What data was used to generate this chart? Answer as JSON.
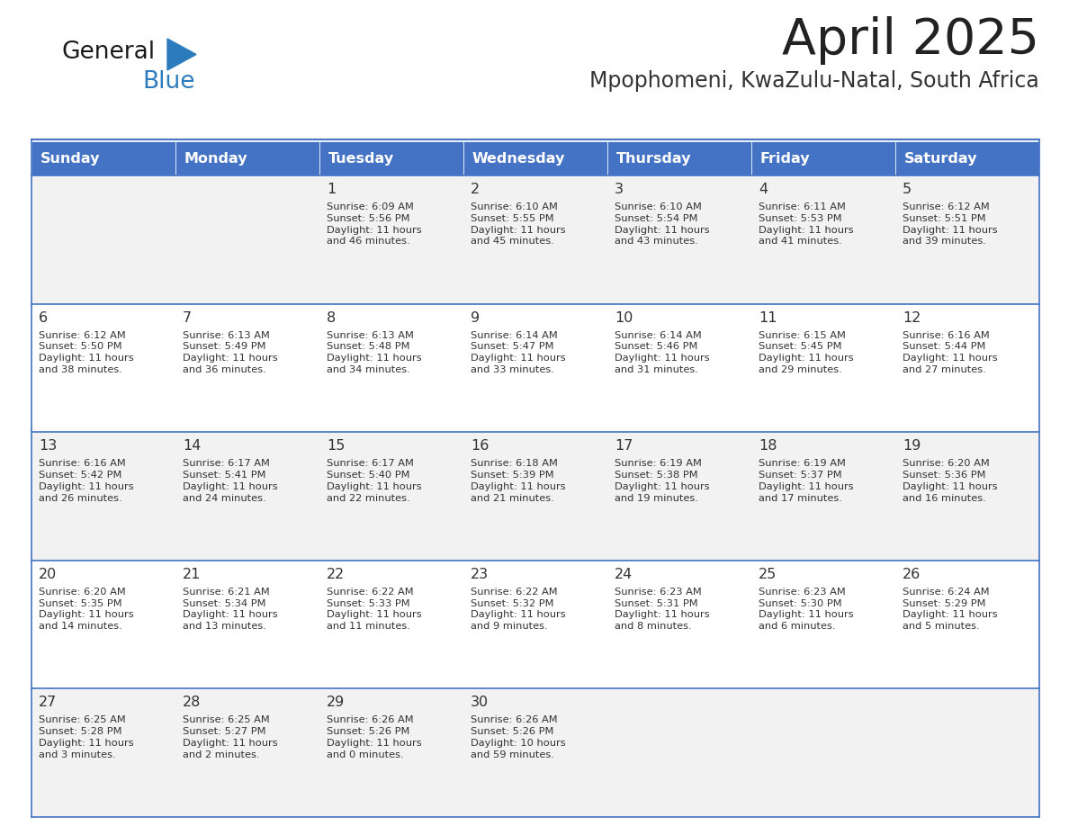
{
  "title": "April 2025",
  "subtitle": "Mpophomeni, KwaZulu-Natal, South Africa",
  "days_of_week": [
    "Sunday",
    "Monday",
    "Tuesday",
    "Wednesday",
    "Thursday",
    "Friday",
    "Saturday"
  ],
  "header_bg": "#4472C4",
  "header_text_color": "#FFFFFF",
  "cell_bg_odd": "#F2F2F2",
  "cell_bg_even": "#FFFFFF",
  "cell_border_color": "#4472C4",
  "title_color": "#222222",
  "subtitle_color": "#333333",
  "text_color": "#333333",
  "logo_general_color": "#1a1a1a",
  "logo_blue_color": "#2B7BBD",
  "calendar": [
    [
      {
        "day": "",
        "info": ""
      },
      {
        "day": "",
        "info": ""
      },
      {
        "day": "1",
        "info": "Sunrise: 6:09 AM\nSunset: 5:56 PM\nDaylight: 11 hours\nand 46 minutes."
      },
      {
        "day": "2",
        "info": "Sunrise: 6:10 AM\nSunset: 5:55 PM\nDaylight: 11 hours\nand 45 minutes."
      },
      {
        "day": "3",
        "info": "Sunrise: 6:10 AM\nSunset: 5:54 PM\nDaylight: 11 hours\nand 43 minutes."
      },
      {
        "day": "4",
        "info": "Sunrise: 6:11 AM\nSunset: 5:53 PM\nDaylight: 11 hours\nand 41 minutes."
      },
      {
        "day": "5",
        "info": "Sunrise: 6:12 AM\nSunset: 5:51 PM\nDaylight: 11 hours\nand 39 minutes."
      }
    ],
    [
      {
        "day": "6",
        "info": "Sunrise: 6:12 AM\nSunset: 5:50 PM\nDaylight: 11 hours\nand 38 minutes."
      },
      {
        "day": "7",
        "info": "Sunrise: 6:13 AM\nSunset: 5:49 PM\nDaylight: 11 hours\nand 36 minutes."
      },
      {
        "day": "8",
        "info": "Sunrise: 6:13 AM\nSunset: 5:48 PM\nDaylight: 11 hours\nand 34 minutes."
      },
      {
        "day": "9",
        "info": "Sunrise: 6:14 AM\nSunset: 5:47 PM\nDaylight: 11 hours\nand 33 minutes."
      },
      {
        "day": "10",
        "info": "Sunrise: 6:14 AM\nSunset: 5:46 PM\nDaylight: 11 hours\nand 31 minutes."
      },
      {
        "day": "11",
        "info": "Sunrise: 6:15 AM\nSunset: 5:45 PM\nDaylight: 11 hours\nand 29 minutes."
      },
      {
        "day": "12",
        "info": "Sunrise: 6:16 AM\nSunset: 5:44 PM\nDaylight: 11 hours\nand 27 minutes."
      }
    ],
    [
      {
        "day": "13",
        "info": "Sunrise: 6:16 AM\nSunset: 5:42 PM\nDaylight: 11 hours\nand 26 minutes."
      },
      {
        "day": "14",
        "info": "Sunrise: 6:17 AM\nSunset: 5:41 PM\nDaylight: 11 hours\nand 24 minutes."
      },
      {
        "day": "15",
        "info": "Sunrise: 6:17 AM\nSunset: 5:40 PM\nDaylight: 11 hours\nand 22 minutes."
      },
      {
        "day": "16",
        "info": "Sunrise: 6:18 AM\nSunset: 5:39 PM\nDaylight: 11 hours\nand 21 minutes."
      },
      {
        "day": "17",
        "info": "Sunrise: 6:19 AM\nSunset: 5:38 PM\nDaylight: 11 hours\nand 19 minutes."
      },
      {
        "day": "18",
        "info": "Sunrise: 6:19 AM\nSunset: 5:37 PM\nDaylight: 11 hours\nand 17 minutes."
      },
      {
        "day": "19",
        "info": "Sunrise: 6:20 AM\nSunset: 5:36 PM\nDaylight: 11 hours\nand 16 minutes."
      }
    ],
    [
      {
        "day": "20",
        "info": "Sunrise: 6:20 AM\nSunset: 5:35 PM\nDaylight: 11 hours\nand 14 minutes."
      },
      {
        "day": "21",
        "info": "Sunrise: 6:21 AM\nSunset: 5:34 PM\nDaylight: 11 hours\nand 13 minutes."
      },
      {
        "day": "22",
        "info": "Sunrise: 6:22 AM\nSunset: 5:33 PM\nDaylight: 11 hours\nand 11 minutes."
      },
      {
        "day": "23",
        "info": "Sunrise: 6:22 AM\nSunset: 5:32 PM\nDaylight: 11 hours\nand 9 minutes."
      },
      {
        "day": "24",
        "info": "Sunrise: 6:23 AM\nSunset: 5:31 PM\nDaylight: 11 hours\nand 8 minutes."
      },
      {
        "day": "25",
        "info": "Sunrise: 6:23 AM\nSunset: 5:30 PM\nDaylight: 11 hours\nand 6 minutes."
      },
      {
        "day": "26",
        "info": "Sunrise: 6:24 AM\nSunset: 5:29 PM\nDaylight: 11 hours\nand 5 minutes."
      }
    ],
    [
      {
        "day": "27",
        "info": "Sunrise: 6:25 AM\nSunset: 5:28 PM\nDaylight: 11 hours\nand 3 minutes."
      },
      {
        "day": "28",
        "info": "Sunrise: 6:25 AM\nSunset: 5:27 PM\nDaylight: 11 hours\nand 2 minutes."
      },
      {
        "day": "29",
        "info": "Sunrise: 6:26 AM\nSunset: 5:26 PM\nDaylight: 11 hours\nand 0 minutes."
      },
      {
        "day": "30",
        "info": "Sunrise: 6:26 AM\nSunset: 5:26 PM\nDaylight: 10 hours\nand 59 minutes."
      },
      {
        "day": "",
        "info": ""
      },
      {
        "day": "",
        "info": ""
      },
      {
        "day": "",
        "info": ""
      }
    ]
  ]
}
